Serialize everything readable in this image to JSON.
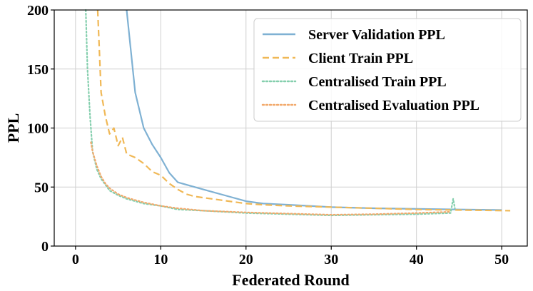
{
  "chart_data": {
    "type": "line",
    "xlabel": "Federated Round",
    "ylabel": "PPL",
    "xlim": [
      -2.5,
      53
    ],
    "ylim": [
      0,
      200
    ],
    "xticks": [
      0,
      10,
      20,
      30,
      40,
      50
    ],
    "yticks": [
      0,
      50,
      100,
      150,
      200
    ],
    "grid": true,
    "legend_position": "top-right",
    "series": [
      {
        "name": "Server Validation PPL",
        "color": "#7fb1d3",
        "style": "solid",
        "x": [
          6,
          7,
          8,
          9,
          10,
          11,
          12,
          14,
          16,
          18,
          20,
          22,
          25,
          30,
          35,
          40,
          45,
          50
        ],
        "y": [
          200,
          130,
          100,
          86,
          75,
          62,
          54,
          50,
          46,
          42,
          38,
          36,
          35,
          33,
          32,
          31.5,
          31,
          30.5
        ]
      },
      {
        "name": "Client Train PPL",
        "color": "#f0b856",
        "style": "dashed",
        "x": [
          2.6,
          3,
          3.5,
          4,
          4.5,
          5,
          5.5,
          6,
          7,
          8,
          9,
          10,
          11,
          12,
          13,
          14,
          16,
          18,
          20,
          22,
          25,
          30,
          35,
          40,
          45,
          51
        ],
        "y": [
          200,
          130,
          110,
          95,
          100,
          85,
          92,
          78,
          75,
          70,
          63,
          60,
          53,
          48,
          44,
          42,
          40,
          38,
          36,
          35,
          34,
          33,
          32,
          31,
          30.5,
          30
        ]
      },
      {
        "name": "Centralised Train PPL",
        "color": "#85cfae",
        "style": "dotted",
        "x": [
          1.2,
          1.4,
          1.7,
          2,
          2.5,
          3,
          3.5,
          4,
          5,
          6,
          7,
          8,
          10,
          12,
          15,
          20,
          25,
          30,
          35,
          40,
          44,
          44.3,
          44.5
        ],
        "y": [
          200,
          150,
          110,
          80,
          65,
          57,
          52,
          47,
          43,
          40,
          38,
          36,
          34,
          31,
          30,
          28,
          27,
          26,
          26.5,
          27,
          28,
          40,
          32
        ]
      },
      {
        "name": "Centralised Evaluation PPL",
        "color": "#f2a96b",
        "style": "dotted",
        "x": [
          1.8,
          2,
          2.5,
          3,
          3.5,
          4,
          5,
          6,
          7,
          8,
          10,
          12,
          15,
          20,
          25,
          30,
          35,
          40,
          44
        ],
        "y": [
          88,
          80,
          68,
          59,
          53,
          49,
          44,
          41,
          39,
          37,
          34,
          32,
          30,
          28.5,
          27.5,
          26.5,
          27,
          28,
          29
        ]
      }
    ]
  }
}
